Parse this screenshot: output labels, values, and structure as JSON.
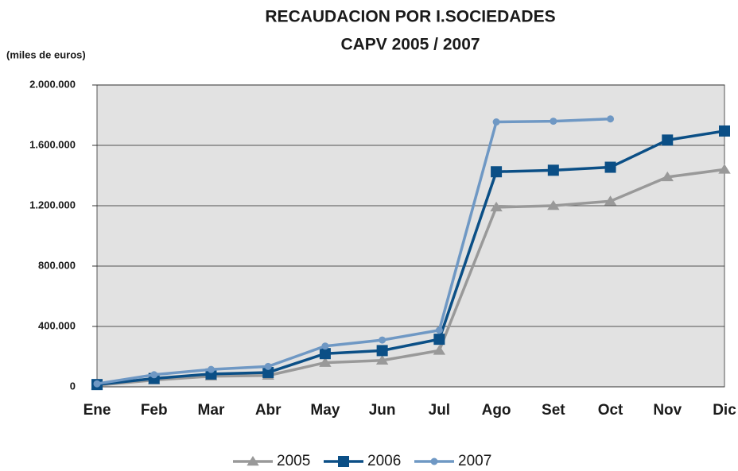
{
  "chart_data": {
    "type": "line",
    "title": "RECAUDACION  POR  I.SOCIEDADES",
    "subtitle": "CAPV 2005 / 2007",
    "y_label": "(miles de euros)",
    "categories": [
      "Ene",
      "Feb",
      "Mar",
      "Abr",
      "May",
      "Jun",
      "Jul",
      "Ago",
      "Set",
      "Oct",
      "Nov",
      "Dic"
    ],
    "series": [
      {
        "name": "2005",
        "color": "#999999",
        "marker": "triangle",
        "values": [
          10000,
          45000,
          70000,
          75000,
          160000,
          175000,
          240000,
          1190000,
          1200000,
          1230000,
          1390000,
          1440000
        ]
      },
      {
        "name": "2006",
        "color": "#0b4f86",
        "marker": "square",
        "values": [
          15000,
          55000,
          85000,
          95000,
          220000,
          240000,
          315000,
          1425000,
          1435000,
          1455000,
          1635000,
          1695000
        ]
      },
      {
        "name": "2007",
        "color": "#6f98c4",
        "marker": "circle",
        "values": [
          20000,
          80000,
          115000,
          135000,
          270000,
          310000,
          375000,
          1755000,
          1760000,
          1775000,
          null,
          null
        ]
      }
    ],
    "ylim": [
      0,
      2000000
    ],
    "yticks": [
      0,
      {
        "value": 400000,
        "label": "400.000"
      },
      {
        "value": 800000,
        "label": "800.000"
      },
      {
        "value": 1200000,
        "label": "1.200.000"
      },
      {
        "value": 1600000,
        "label": "1.600.000"
      },
      {
        "value": 2000000,
        "label": "2.000.000"
      }
    ],
    "grid": true,
    "legend": "bottom"
  }
}
